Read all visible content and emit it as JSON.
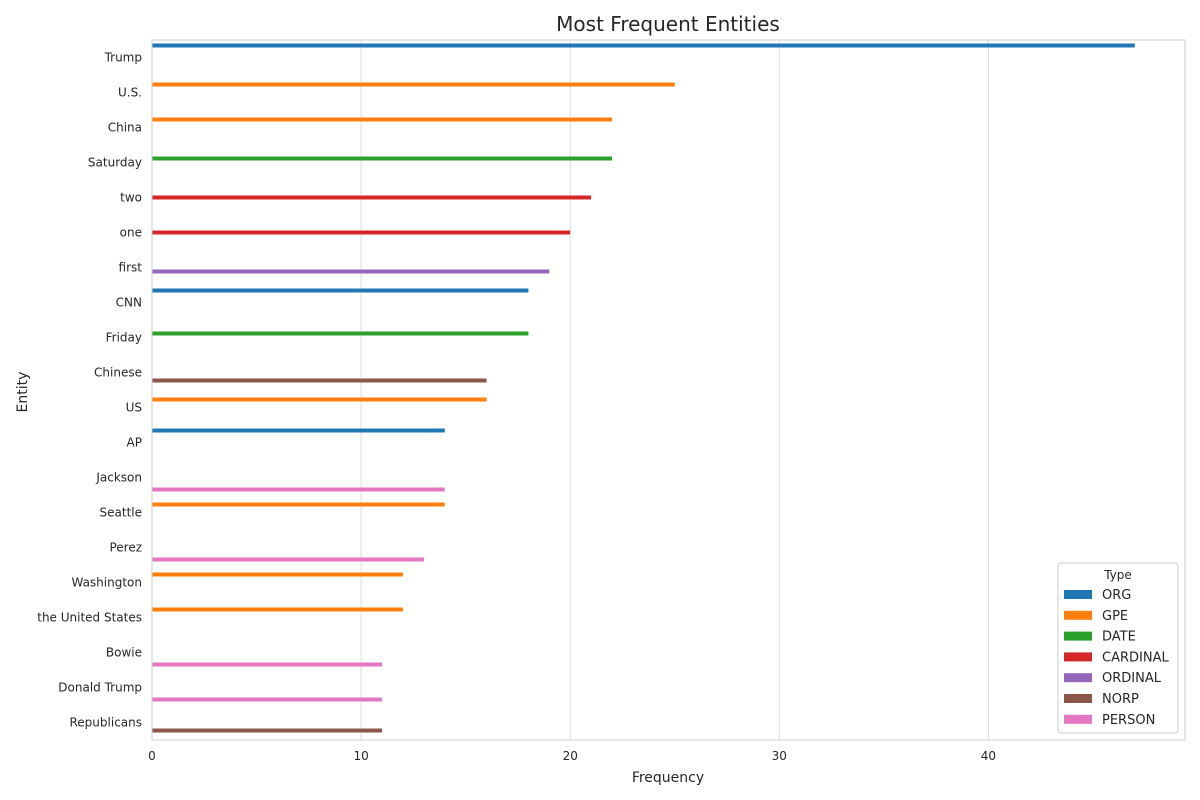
{
  "chart_data": {
    "type": "bar",
    "orientation": "horizontal",
    "title": "Most Frequent Entities",
    "xlabel": "Frequency",
    "ylabel": "Entity",
    "xlim": [
      0,
      49.4
    ],
    "xticks": [
      0,
      10,
      20,
      30,
      40
    ],
    "grid": true,
    "legend_position": "bottom-right",
    "legend_title": "Type",
    "categories": [
      "Trump",
      "U.S.",
      "China",
      "Saturday",
      "two",
      "one",
      "first",
      "CNN",
      "Friday",
      "Chinese",
      "US",
      "AP",
      "Jackson",
      "Seattle",
      "Perez",
      "Washington",
      "the United States",
      "Bowie",
      "Donald Trump",
      "Republicans"
    ],
    "types": [
      "ORG",
      "GPE",
      "DATE",
      "CARDINAL",
      "ORDINAL",
      "NORP",
      "PERSON"
    ],
    "colors": {
      "ORG": "#1f77b4",
      "GPE": "#ff7f0e",
      "DATE": "#2ca02c",
      "CARDINAL": "#d62728",
      "ORDINAL": "#9467bd",
      "NORP": "#8c564b",
      "PERSON": "#e377c2"
    },
    "bars": [
      {
        "entity": "Trump",
        "type": "ORG",
        "value": 47
      },
      {
        "entity": "U.S.",
        "type": "GPE",
        "value": 25
      },
      {
        "entity": "China",
        "type": "GPE",
        "value": 22
      },
      {
        "entity": "Saturday",
        "type": "DATE",
        "value": 22
      },
      {
        "entity": "two",
        "type": "CARDINAL",
        "value": 21
      },
      {
        "entity": "one",
        "type": "CARDINAL",
        "value": 20
      },
      {
        "entity": "first",
        "type": "ORDINAL",
        "value": 19
      },
      {
        "entity": "CNN",
        "type": "ORG",
        "value": 18
      },
      {
        "entity": "Friday",
        "type": "DATE",
        "value": 18
      },
      {
        "entity": "Chinese",
        "type": "NORP",
        "value": 16
      },
      {
        "entity": "US",
        "type": "GPE",
        "value": 16
      },
      {
        "entity": "AP",
        "type": "ORG",
        "value": 14
      },
      {
        "entity": "Jackson",
        "type": "PERSON",
        "value": 14
      },
      {
        "entity": "Seattle",
        "type": "GPE",
        "value": 14
      },
      {
        "entity": "Perez",
        "type": "PERSON",
        "value": 13
      },
      {
        "entity": "Washington",
        "type": "GPE",
        "value": 12
      },
      {
        "entity": "the United States",
        "type": "GPE",
        "value": 12
      },
      {
        "entity": "Bowie",
        "type": "PERSON",
        "value": 11
      },
      {
        "entity": "Donald Trump",
        "type": "PERSON",
        "value": 11
      },
      {
        "entity": "Republicans",
        "type": "NORP",
        "value": 11
      }
    ]
  }
}
